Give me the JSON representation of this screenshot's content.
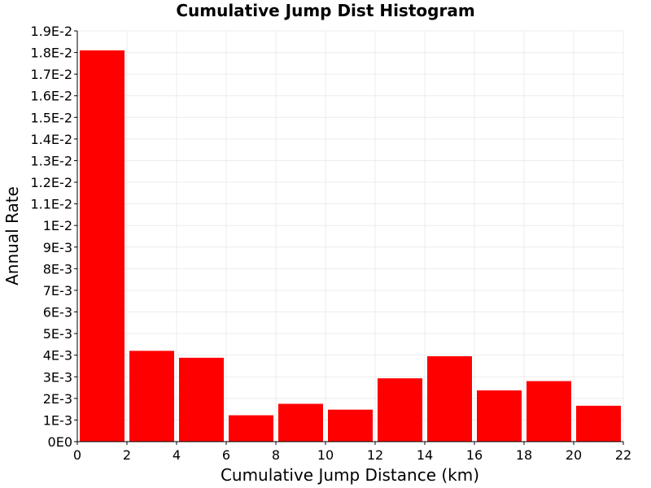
{
  "chart_data": {
    "type": "bar",
    "title": "Cumulative Jump Dist Histogram",
    "xlabel": "Cumulative Jump Distance (km)",
    "ylabel": "Annual Rate",
    "xlim": [
      0,
      22
    ],
    "ylim": [
      0,
      0.019
    ],
    "grid": true,
    "legend": "none",
    "bar_color": "#ff0000",
    "bin_width": 2,
    "x": [
      1,
      3,
      5,
      7,
      9,
      11,
      13,
      15,
      17,
      19,
      21
    ],
    "values": [
      0.0181,
      0.0042,
      0.00388,
      0.00122,
      0.00175,
      0.00148,
      0.00293,
      0.00395,
      0.00237,
      0.0028,
      0.00166
    ],
    "x_ticks": [
      0,
      2,
      4,
      6,
      8,
      10,
      12,
      14,
      16,
      18,
      20,
      22
    ],
    "x_tick_labels": [
      "0",
      "2",
      "4",
      "6",
      "8",
      "10",
      "12",
      "14",
      "16",
      "18",
      "20",
      "22"
    ],
    "y_ticks": [
      0,
      0.001,
      0.002,
      0.003,
      0.004,
      0.005,
      0.006,
      0.007,
      0.008,
      0.009,
      0.01,
      0.011,
      0.012,
      0.013,
      0.014,
      0.015,
      0.016,
      0.017,
      0.018,
      0.019
    ],
    "y_tick_labels": [
      "0E0",
      "1E-3",
      "2E-3",
      "3E-3",
      "4E-3",
      "5E-3",
      "6E-3",
      "7E-3",
      "8E-3",
      "9E-3",
      "1E-2",
      "1.1E-2",
      "1.2E-2",
      "1.3E-2",
      "1.4E-2",
      "1.5E-2",
      "1.6E-2",
      "1.7E-2",
      "1.8E-2",
      "1.9E-2"
    ]
  }
}
